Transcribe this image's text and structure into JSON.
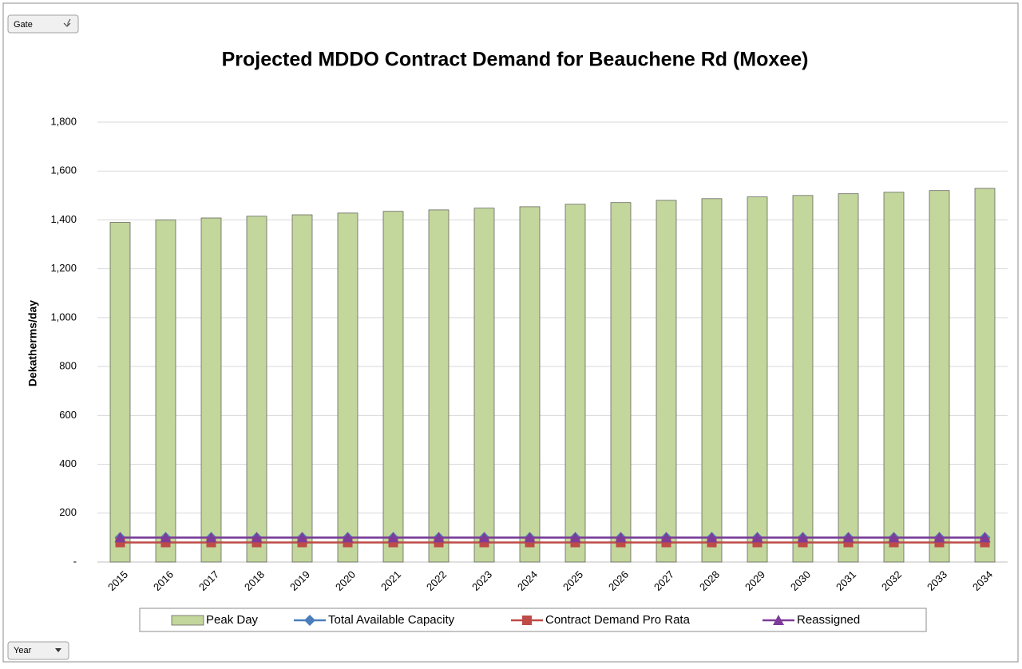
{
  "controls": {
    "gate": "Gate",
    "year": "Year"
  },
  "chart_data": {
    "type": "bar",
    "title": "Projected MDDO Contract Demand for Beauchene Rd (Moxee)",
    "y_label": "Dekatherms/day",
    "categories": [
      "2015",
      "2016",
      "2017",
      "2018",
      "2019",
      "2020",
      "2021",
      "2022",
      "2023",
      "2024",
      "2025",
      "2026",
      "2027",
      "2028",
      "2029",
      "2030",
      "2031",
      "2032",
      "2033",
      "2034"
    ],
    "series": [
      {
        "name": "Peak Day",
        "type": "bar",
        "color": "#c3d69b",
        "values": [
          1390,
          1400,
          1408,
          1415,
          1421,
          1428,
          1435,
          1441,
          1448,
          1454,
          1464,
          1471,
          1480,
          1487,
          1494,
          1500,
          1507,
          1513,
          1520,
          1529
        ]
      },
      {
        "name": "Total Available Capacity",
        "type": "line",
        "marker": "diamond",
        "color": "#4a7ebb",
        "values": [
          100,
          100,
          100,
          100,
          100,
          100,
          100,
          100,
          100,
          100,
          100,
          100,
          100,
          100,
          100,
          100,
          100,
          100,
          100,
          100
        ]
      },
      {
        "name": "Contract Demand Pro Rata",
        "type": "line",
        "marker": "square",
        "color": "#be4b48",
        "values": [
          80,
          80,
          80,
          80,
          80,
          80,
          80,
          80,
          80,
          80,
          80,
          80,
          80,
          80,
          80,
          80,
          80,
          80,
          80,
          80
        ]
      },
      {
        "name": "Reassigned",
        "type": "line",
        "marker": "triangle",
        "color": "#7d3c98",
        "values": [
          100,
          100,
          100,
          100,
          100,
          100,
          100,
          100,
          100,
          100,
          100,
          100,
          100,
          100,
          100,
          100,
          100,
          100,
          100,
          100
        ]
      }
    ],
    "ylim": [
      0,
      1800
    ],
    "yticks": [
      {
        "value": 0,
        "label": "-"
      },
      200,
      400,
      600,
      800,
      {
        "value": 1000,
        "label": "1,000"
      },
      {
        "value": 1200,
        "label": "1,200"
      },
      {
        "value": 1400,
        "label": "1,400"
      },
      {
        "value": 1600,
        "label": "1,600"
      },
      {
        "value": 1800,
        "label": "1,800"
      }
    ],
    "grid": true,
    "legend": "bottom"
  }
}
